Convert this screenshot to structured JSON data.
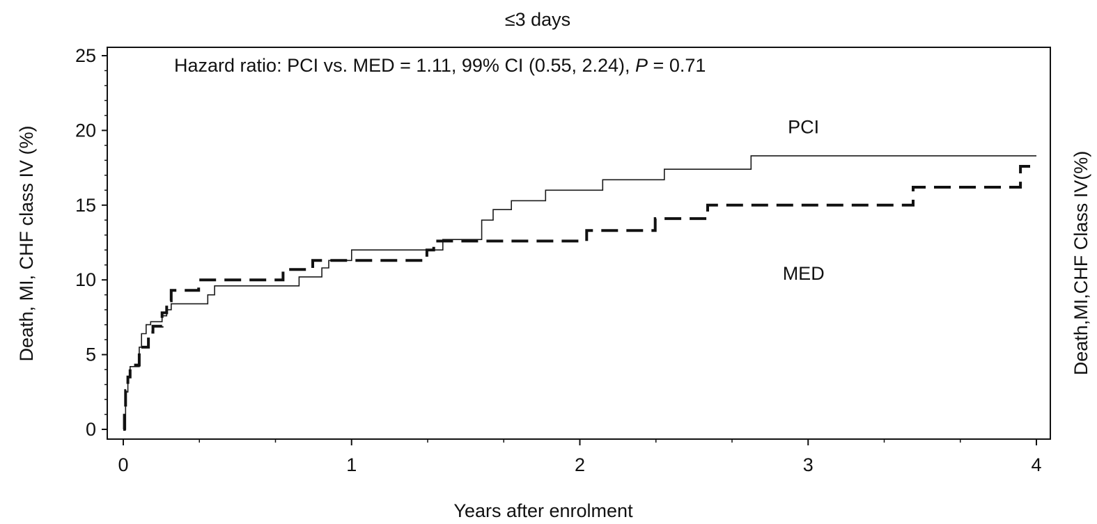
{
  "chart_data": {
    "type": "line",
    "title": "≤3 days",
    "xlabel": "Years after enrolment",
    "ylabel": "Death, MI, CHF class IV (%)",
    "ylabel_right": "Death,MI,CHF Class IV(%)",
    "xlim": [
      0,
      4
    ],
    "ylim": [
      0,
      25
    ],
    "x_ticks": [
      "0",
      "1",
      "2",
      "3",
      "4"
    ],
    "y_ticks": [
      "0",
      "5",
      "10",
      "15",
      "20",
      "25"
    ],
    "grid": false,
    "annotation": {
      "prefix": "Hazard ratio: PCI vs. MED = 1.11, 99% CI (0.55, 2.24), ",
      "italic": "P",
      "suffix": " = 0.71"
    },
    "series": [
      {
        "name": "PCI",
        "style": "solid",
        "color": "#1a1a1a",
        "x": [
          0,
          0.01,
          0.02,
          0.03,
          0.05,
          0.07,
          0.08,
          0.1,
          0.12,
          0.15,
          0.17,
          0.19,
          0.21,
          0.35,
          0.37,
          0.4,
          0.75,
          0.77,
          0.85,
          0.87,
          0.9,
          1.0,
          1.35,
          1.4,
          1.55,
          1.57,
          1.62,
          1.67,
          1.7,
          1.83,
          1.85,
          2.07,
          2.1,
          2.35,
          2.37,
          2.73,
          2.75,
          4.0
        ],
        "y": [
          0,
          2.5,
          3.5,
          4.2,
          4.2,
          5.5,
          6.4,
          7.0,
          7.2,
          7.2,
          7.6,
          8.0,
          8.4,
          8.4,
          9.0,
          9.6,
          9.6,
          10.2,
          10.2,
          10.8,
          11.3,
          12.0,
          12.0,
          12.7,
          12.7,
          14.0,
          14.7,
          14.7,
          15.3,
          15.3,
          16.0,
          16.0,
          16.7,
          16.7,
          17.4,
          17.4,
          18.3,
          18.3
        ]
      },
      {
        "name": "MED",
        "style": "dashed",
        "color": "#111111",
        "x": [
          0,
          0.005,
          0.01,
          0.02,
          0.03,
          0.05,
          0.07,
          0.09,
          0.11,
          0.13,
          0.15,
          0.17,
          0.19,
          0.21,
          0.3,
          0.33,
          0.67,
          0.7,
          0.8,
          0.83,
          1.0,
          1.3,
          1.33,
          1.36,
          2.0,
          2.03,
          2.3,
          2.33,
          2.53,
          2.56,
          3.43,
          3.46,
          3.9,
          3.93,
          4.0
        ],
        "y": [
          0,
          1.5,
          2.6,
          3.5,
          4.3,
          4.3,
          5.5,
          5.5,
          6.5,
          6.9,
          6.9,
          7.8,
          8.6,
          9.3,
          9.3,
          10.0,
          10.0,
          10.7,
          10.7,
          11.3,
          11.3,
          11.3,
          12.0,
          12.6,
          12.6,
          13.3,
          13.3,
          14.1,
          14.1,
          15.0,
          15.0,
          16.2,
          16.2,
          17.6,
          17.6
        ]
      }
    ],
    "series_labels": [
      {
        "text": "PCI",
        "x": 2.98,
        "y": 19.8
      },
      {
        "text": "MED",
        "x": 2.98,
        "y": 10.0
      }
    ]
  }
}
